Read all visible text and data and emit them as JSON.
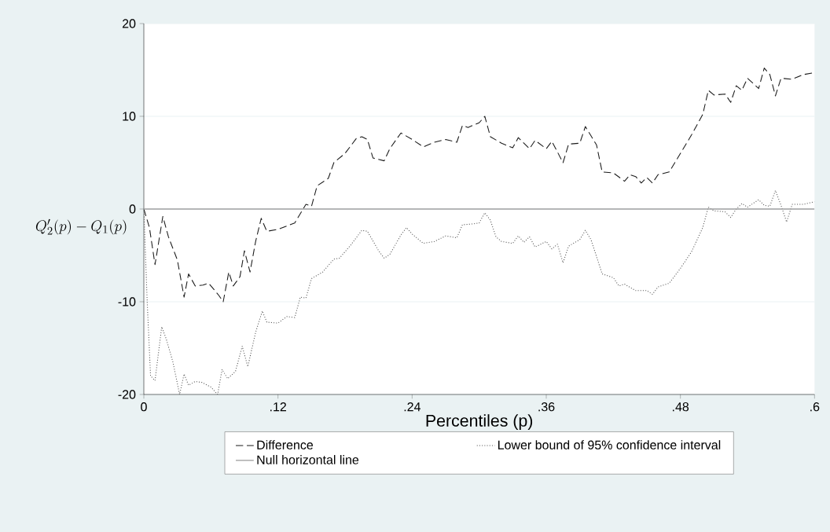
{
  "chart_data": {
    "type": "line",
    "ylabel": "Q'_2(p) - Q_1(p)",
    "xlabel": "Percentiles (p)",
    "xlim": [
      0,
      0.6
    ],
    "ylim": [
      -20,
      20
    ],
    "xticks": [
      0,
      {
        "value": 0.12,
        "label": ".12"
      },
      {
        "value": 0.24,
        "label": ".24"
      },
      {
        "value": 0.36,
        "label": ".36"
      },
      {
        "value": 0.48,
        "label": ".48"
      },
      {
        "value": 0.6,
        "label": ".6"
      }
    ],
    "yticks": [
      -20,
      -10,
      0,
      10,
      20
    ],
    "grid": "y",
    "legend": "bottom",
    "series": [
      {
        "name": "Difference",
        "color": "#1a1a1a",
        "line_style": "dashed",
        "x": [
          0,
          0.005,
          0.01,
          0.017,
          0.022,
          0.03,
          0.036,
          0.04,
          0.046,
          0.053,
          0.058,
          0.067,
          0.071,
          0.076,
          0.08,
          0.086,
          0.09,
          0.095,
          0.1,
          0.105,
          0.11,
          0.12,
          0.135,
          0.145,
          0.15,
          0.155,
          0.165,
          0.17,
          0.18,
          0.19,
          0.195,
          0.2,
          0.205,
          0.215,
          0.22,
          0.23,
          0.24,
          0.25,
          0.26,
          0.27,
          0.28,
          0.285,
          0.29,
          0.3,
          0.305,
          0.31,
          0.32,
          0.33,
          0.335,
          0.345,
          0.35,
          0.36,
          0.365,
          0.375,
          0.38,
          0.39,
          0.395,
          0.4,
          0.405,
          0.41,
          0.42,
          0.43,
          0.435,
          0.44,
          0.445,
          0.45,
          0.455,
          0.46,
          0.47,
          0.48,
          0.49,
          0.5,
          0.505,
          0.51,
          0.52,
          0.525,
          0.53,
          0.535,
          0.54,
          0.55,
          0.555,
          0.56,
          0.565,
          0.57,
          0.58,
          0.59,
          0.6
        ],
        "values": [
          0,
          -2,
          -6,
          -0.8,
          -3,
          -5.5,
          -9.5,
          -7,
          -8.3,
          -8.2,
          -8,
          -9.3,
          -10,
          -6.8,
          -8.3,
          -7.3,
          -4.5,
          -6.8,
          -3.5,
          -1,
          -2.4,
          -2.2,
          -1.5,
          0.5,
          0.3,
          2.5,
          3.3,
          5,
          6,
          7.6,
          7.8,
          7.5,
          5.5,
          5.2,
          6.5,
          8.2,
          7.5,
          6.7,
          7.2,
          7.5,
          7.2,
          9,
          8.8,
          9.3,
          10,
          7.8,
          7.1,
          6.6,
          7.7,
          6.5,
          7.4,
          6.5,
          7.3,
          5,
          7,
          7.1,
          8.9,
          7.9,
          6.9,
          4,
          3.9,
          3,
          3.7,
          3.5,
          2.8,
          3.4,
          2.8,
          3.7,
          4,
          6,
          8,
          10.2,
          12.8,
          12.3,
          12.4,
          11.5,
          13.3,
          12.8,
          14.1,
          13,
          15.2,
          14.5,
          12.2,
          14.1,
          14,
          14.5,
          14.7
        ]
      },
      {
        "name": "Lower bound of 95% confidence interval",
        "color": "#555555",
        "line_style": "dotted",
        "x": [
          0,
          0.003,
          0.006,
          0.01,
          0.016,
          0.02,
          0.026,
          0.032,
          0.036,
          0.04,
          0.046,
          0.052,
          0.06,
          0.066,
          0.07,
          0.075,
          0.082,
          0.088,
          0.093,
          0.1,
          0.106,
          0.11,
          0.12,
          0.128,
          0.135,
          0.14,
          0.145,
          0.15,
          0.16,
          0.17,
          0.175,
          0.185,
          0.195,
          0.2,
          0.21,
          0.215,
          0.22,
          0.23,
          0.235,
          0.24,
          0.25,
          0.26,
          0.27,
          0.28,
          0.285,
          0.295,
          0.3,
          0.305,
          0.31,
          0.315,
          0.32,
          0.33,
          0.335,
          0.34,
          0.345,
          0.35,
          0.36,
          0.365,
          0.37,
          0.375,
          0.38,
          0.39,
          0.395,
          0.4,
          0.41,
          0.42,
          0.425,
          0.43,
          0.44,
          0.45,
          0.455,
          0.46,
          0.47,
          0.48,
          0.49,
          0.5,
          0.505,
          0.51,
          0.52,
          0.525,
          0.53,
          0.535,
          0.54,
          0.55,
          0.555,
          0.56,
          0.565,
          0.57,
          0.575,
          0.58,
          0.59,
          0.6
        ],
        "values": [
          0,
          -10,
          -18,
          -18.5,
          -12.7,
          -14,
          -16.5,
          -20,
          -17.8,
          -19,
          -18.6,
          -18.7,
          -19.2,
          -20,
          -17.3,
          -18.3,
          -17.5,
          -14.8,
          -17,
          -13.3,
          -11,
          -12.2,
          -12.3,
          -11.6,
          -11.7,
          -9.5,
          -9.6,
          -7.5,
          -6.8,
          -5.4,
          -5.3,
          -3.9,
          -2.3,
          -2.4,
          -4.5,
          -5.3,
          -4.9,
          -2.8,
          -2,
          -2.7,
          -3.7,
          -3.5,
          -2.9,
          -3.1,
          -1.7,
          -1.6,
          -1.5,
          -0.4,
          -1.2,
          -3,
          -3.5,
          -3.7,
          -2.9,
          -3.6,
          -3,
          -4.1,
          -3.5,
          -4.3,
          -3.8,
          -5.8,
          -4,
          -3.3,
          -2.3,
          -3.3,
          -7,
          -7.4,
          -8.3,
          -8.1,
          -8.8,
          -8.8,
          -9.2,
          -8.4,
          -8,
          -6.4,
          -4.6,
          -2,
          0.2,
          -0.2,
          -0.3,
          -0.9,
          0,
          0.6,
          0.2,
          1,
          0.4,
          0.3,
          2,
          0.4,
          -1.4,
          0.5,
          0.5,
          0.8
        ]
      }
    ],
    "ref_lines": [
      {
        "axis": "y",
        "value": 0,
        "label": "Null horizontal line",
        "color": "#a0a0a0",
        "line_style": "solid"
      }
    ]
  }
}
